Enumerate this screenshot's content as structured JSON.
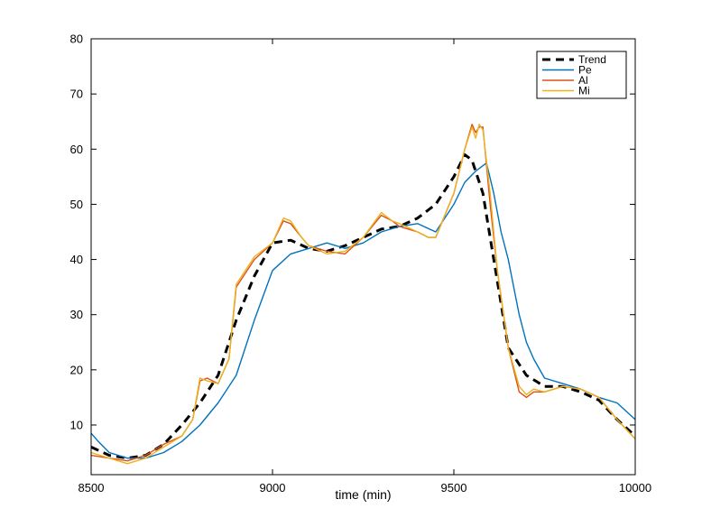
{
  "chart_data": {
    "type": "line",
    "title": "",
    "xlabel": "time (min)",
    "ylabel": "",
    "xlim": [
      8500,
      10000
    ],
    "ylim": [
      1,
      80
    ],
    "xticks": [
      8500,
      9000,
      9500,
      10000
    ],
    "yticks": [
      10,
      20,
      30,
      40,
      50,
      60,
      70,
      80
    ],
    "xtick_labels": [
      "8500",
      "9000",
      "9500",
      "10000"
    ],
    "ytick_labels": [
      "10",
      "20",
      "30",
      "40",
      "50",
      "60",
      "70",
      "80"
    ],
    "grid": false,
    "legend_position": "top-right",
    "series": [
      {
        "name": "Trend",
        "color": "#000000",
        "style": "dashed",
        "x": [
          8500,
          8550,
          8600,
          8650,
          8700,
          8750,
          8800,
          8850,
          8900,
          8950,
          9000,
          9050,
          9100,
          9150,
          9200,
          9250,
          9300,
          9350,
          9400,
          9450,
          9500,
          9530,
          9550,
          9580,
          9600,
          9630,
          9650,
          9700,
          9750,
          9800,
          9850,
          9900,
          9950,
          10000
        ],
        "y": [
          6,
          4.5,
          4,
          4.5,
          6.5,
          10,
          14,
          19,
          29,
          37,
          43,
          43.5,
          42,
          41.5,
          42.5,
          44,
          45.5,
          46,
          47.5,
          50,
          55,
          59,
          58,
          52,
          44,
          32,
          24,
          19,
          17,
          17,
          16,
          14.5,
          11,
          8
        ]
      },
      {
        "name": "Pe",
        "color": "#0072bd",
        "style": "solid",
        "x": [
          8500,
          8520,
          8550,
          8600,
          8650,
          8700,
          8750,
          8800,
          8850,
          8900,
          8950,
          9000,
          9050,
          9100,
          9150,
          9200,
          9250,
          9300,
          9350,
          9400,
          9450,
          9500,
          9530,
          9560,
          9590,
          9610,
          9630,
          9650,
          9680,
          9700,
          9720,
          9750,
          9800,
          9850,
          9900,
          9950,
          10000
        ],
        "y": [
          8.5,
          7,
          5,
          4,
          4,
          5,
          7,
          10,
          14,
          19,
          29,
          38,
          41,
          42,
          43,
          42,
          43,
          45,
          46,
          46.5,
          45,
          50,
          54,
          56,
          57.5,
          52,
          45,
          40,
          30,
          25,
          22,
          18.5,
          17.5,
          16.5,
          15,
          14,
          11
        ]
      },
      {
        "name": "Al",
        "color": "#d95319",
        "style": "solid",
        "x": [
          8500,
          8550,
          8600,
          8650,
          8700,
          8750,
          8780,
          8800,
          8820,
          8850,
          8880,
          8900,
          8950,
          9000,
          9030,
          9050,
          9080,
          9100,
          9150,
          9200,
          9250,
          9300,
          9330,
          9350,
          9400,
          9430,
          9450,
          9500,
          9530,
          9550,
          9560,
          9570,
          9580,
          9600,
          9620,
          9650,
          9680,
          9700,
          9720,
          9750,
          9800,
          9850,
          9900,
          9950,
          10000
        ],
        "y": [
          4.5,
          4,
          3.5,
          4.5,
          6.5,
          8,
          11,
          18,
          18.5,
          17.5,
          22,
          35,
          40,
          43,
          47,
          46.5,
          44,
          42.5,
          41.5,
          41,
          44,
          48,
          47,
          46,
          45,
          44,
          44,
          52,
          60,
          64.5,
          63,
          64,
          64,
          50,
          38,
          24,
          16,
          15,
          16,
          16,
          17,
          16.5,
          15,
          11,
          7.5
        ]
      },
      {
        "name": "Mi",
        "color": "#edb120",
        "style": "solid",
        "x": [
          8500,
          8550,
          8600,
          8650,
          8700,
          8750,
          8780,
          8800,
          8820,
          8850,
          8880,
          8900,
          8950,
          9000,
          9030,
          9050,
          9080,
          9100,
          9150,
          9200,
          9250,
          9300,
          9330,
          9350,
          9400,
          9430,
          9450,
          9500,
          9530,
          9550,
          9560,
          9570,
          9580,
          9600,
          9620,
          9650,
          9680,
          9700,
          9720,
          9750,
          9800,
          9850,
          9900,
          9950,
          10000
        ],
        "y": [
          5,
          4,
          3,
          4,
          6,
          8,
          11,
          18.5,
          18,
          17.5,
          22,
          35.5,
          40.5,
          43,
          47.5,
          47,
          44,
          42.5,
          41,
          41.5,
          44,
          48.5,
          47,
          46.5,
          45,
          44,
          44,
          52,
          60,
          64,
          62,
          64.5,
          63.5,
          52,
          38,
          24,
          17,
          15.5,
          16.5,
          16,
          17,
          16.5,
          15,
          11,
          7.5
        ]
      }
    ]
  }
}
